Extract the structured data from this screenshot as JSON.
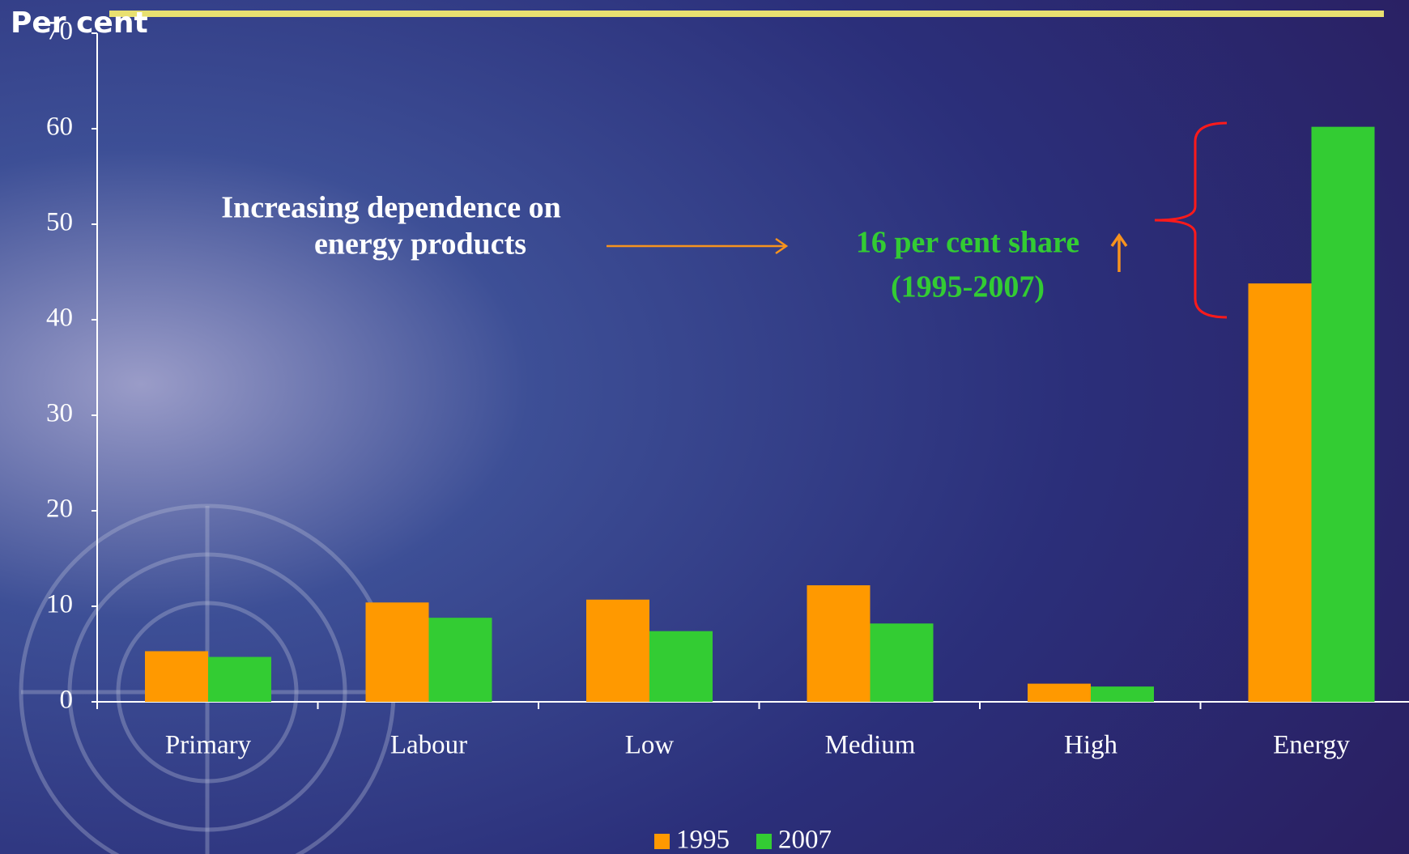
{
  "chart_data": {
    "type": "bar",
    "title": "Per cent",
    "categories": [
      "Primary",
      "Labour",
      "Low",
      "Medium",
      "High",
      "Energy"
    ],
    "series": [
      {
        "name": "1995",
        "color": "#ff9900",
        "values": [
          5.3,
          10.4,
          10.7,
          12.2,
          1.9,
          43.8
        ]
      },
      {
        "name": "2007",
        "color": "#33cc33",
        "values": [
          4.7,
          8.8,
          7.4,
          8.2,
          1.6,
          60.2
        ]
      }
    ],
    "ylim": [
      0,
      70
    ],
    "yticks": [
      0,
      10,
      20,
      30,
      40,
      50,
      60,
      70
    ],
    "annotations": [
      "Increasing dependence on",
      "energy products",
      "16 per cent share",
      "(1995-2007)"
    ]
  }
}
